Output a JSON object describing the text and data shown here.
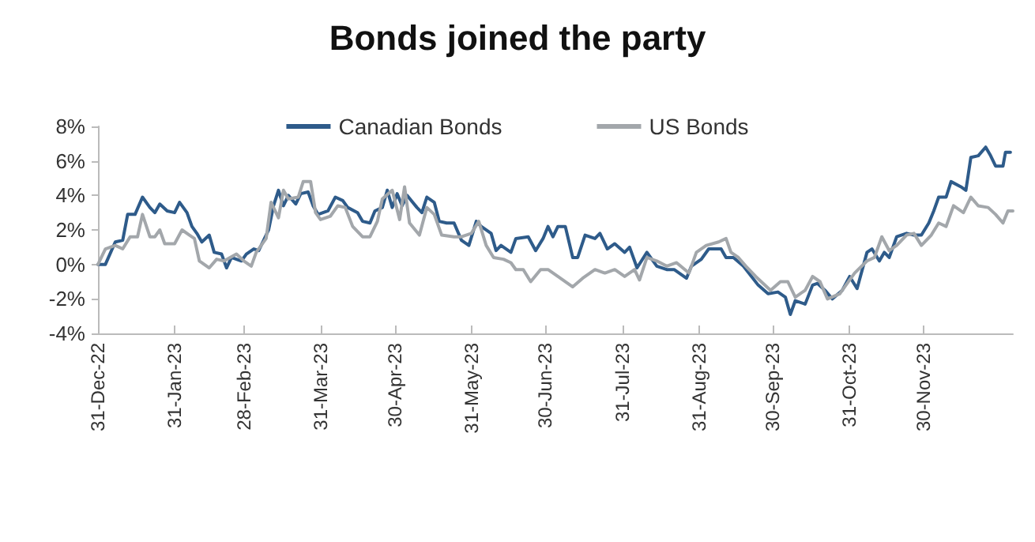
{
  "chart_data": {
    "type": "line",
    "title": "Bonds joined the party",
    "xlim": [
      "2022-12-31",
      "2024-01-05"
    ],
    "xticks": [
      {
        "value": "2022-12-31",
        "label": "31-Dec-22"
      },
      {
        "value": "2023-01-31",
        "label": "31-Jan-23"
      },
      {
        "value": "2023-02-28",
        "label": "28-Feb-23"
      },
      {
        "value": "2023-03-31",
        "label": "31-Mar-23"
      },
      {
        "value": "2023-04-30",
        "label": "30-Apr-23"
      },
      {
        "value": "2023-05-31",
        "label": "31-May-23"
      },
      {
        "value": "2023-06-30",
        "label": "30-Jun-23"
      },
      {
        "value": "2023-07-31",
        "label": "31-Jul-23"
      },
      {
        "value": "2023-08-31",
        "label": "31-Aug-23"
      },
      {
        "value": "2023-09-30",
        "label": "30-Sep-23"
      },
      {
        "value": "2023-10-31",
        "label": "31-Oct-23"
      },
      {
        "value": "2023-11-30",
        "label": "30-Nov-23"
      }
    ],
    "ylim": [
      -4,
      8
    ],
    "yticks": [
      {
        "value": -4,
        "label": "-4%"
      },
      {
        "value": -2,
        "label": "-2%"
      },
      {
        "value": 0,
        "label": "0%"
      },
      {
        "value": 2,
        "label": "2%"
      },
      {
        "value": 4,
        "label": "4%"
      },
      {
        "value": 6,
        "label": "6%"
      },
      {
        "value": 8,
        "label": "8%"
      }
    ],
    "grid": false,
    "legend": "top",
    "marker": "none",
    "line_style": "solid",
    "series": [
      {
        "name": "Canadian Bonds",
        "color": "#2e5b8a",
        "x": [
          "2022-12-31",
          "2023-01-03",
          "2023-01-07",
          "2023-01-10",
          "2023-01-12",
          "2023-01-15",
          "2023-01-18",
          "2023-01-21",
          "2023-01-23",
          "2023-01-25",
          "2023-01-28",
          "2023-01-31",
          "2023-02-02",
          "2023-02-05",
          "2023-02-07",
          "2023-02-09",
          "2023-02-11",
          "2023-02-14",
          "2023-02-16",
          "2023-02-19",
          "2023-02-21",
          "2023-02-23",
          "2023-02-27",
          "2023-03-01",
          "2023-03-04",
          "2023-03-06",
          "2023-03-10",
          "2023-03-12",
          "2023-03-14",
          "2023-03-16",
          "2023-03-18",
          "2023-03-21",
          "2023-03-23",
          "2023-03-26",
          "2023-03-28",
          "2023-03-30",
          "2023-04-03",
          "2023-04-06",
          "2023-04-09",
          "2023-04-11",
          "2023-04-15",
          "2023-04-17",
          "2023-04-20",
          "2023-04-22",
          "2023-04-25",
          "2023-04-27",
          "2023-04-29",
          "2023-05-01",
          "2023-05-03",
          "2023-05-05",
          "2023-05-09",
          "2023-05-11",
          "2023-05-13",
          "2023-05-16",
          "2023-05-18",
          "2023-05-21",
          "2023-05-24",
          "2023-05-27",
          "2023-05-30",
          "2023-06-02",
          "2023-06-04",
          "2023-06-08",
          "2023-06-10",
          "2023-06-12",
          "2023-06-16",
          "2023-06-18",
          "2023-06-23",
          "2023-06-26",
          "2023-06-29",
          "2023-07-01",
          "2023-07-03",
          "2023-07-05",
          "2023-07-08",
          "2023-07-11",
          "2023-07-13",
          "2023-07-16",
          "2023-07-20",
          "2023-07-22",
          "2023-07-25",
          "2023-07-28",
          "2023-08-01",
          "2023-08-03",
          "2023-08-06",
          "2023-08-10",
          "2023-08-14",
          "2023-08-18",
          "2023-08-21",
          "2023-08-26",
          "2023-08-28",
          "2023-09-01",
          "2023-09-04",
          "2023-09-09",
          "2023-09-11",
          "2023-09-14",
          "2023-09-18",
          "2023-09-24",
          "2023-09-28",
          "2023-10-02",
          "2023-10-05",
          "2023-10-07",
          "2023-10-09",
          "2023-10-13",
          "2023-10-16",
          "2023-10-18",
          "2023-10-21",
          "2023-10-24",
          "2023-10-28",
          "2023-10-31",
          "2023-11-03",
          "2023-11-07",
          "2023-11-09",
          "2023-11-12",
          "2023-11-14",
          "2023-11-16",
          "2023-11-19",
          "2023-11-23",
          "2023-11-26",
          "2023-11-29",
          "2023-12-02",
          "2023-12-04",
          "2023-12-06",
          "2023-12-09",
          "2023-12-11",
          "2023-12-15",
          "2023-12-17",
          "2023-12-19",
          "2023-12-22",
          "2023-12-25",
          "2023-12-27",
          "2023-12-29",
          "2024-01-01",
          "2024-01-02",
          "2024-01-04"
        ],
        "values": [
          0,
          0,
          1.3,
          1.4,
          2.9,
          2.9,
          3.9,
          3.3,
          3.0,
          3.5,
          3.1,
          3.0,
          3.6,
          3.0,
          2.2,
          1.8,
          1.3,
          1.7,
          0.7,
          0.6,
          -0.2,
          0.4,
          0.2,
          0.6,
          0.9,
          0.8,
          2.0,
          3.4,
          4.3,
          3.4,
          4.0,
          3.5,
          4.1,
          4.2,
          3.4,
          2.9,
          3.1,
          3.9,
          3.7,
          3.3,
          3.0,
          2.5,
          2.4,
          3.1,
          3.3,
          4.3,
          3.3,
          4.1,
          3.4,
          4.0,
          3.3,
          3.0,
          3.9,
          3.6,
          2.5,
          2.4,
          2.4,
          1.4,
          1.1,
          2.5,
          2.2,
          1.8,
          0.8,
          1.1,
          0.7,
          1.5,
          1.6,
          0.8,
          1.5,
          2.2,
          1.6,
          2.2,
          2.2,
          0.4,
          0.4,
          1.7,
          1.5,
          1.8,
          0.9,
          1.2,
          0.7,
          1.0,
          -0.2,
          0.7,
          -0.1,
          -0.3,
          -0.3,
          -0.8,
          -0.1,
          0.3,
          0.9,
          0.9,
          0.4,
          0.4,
          -0.1,
          -1.2,
          -1.7,
          -1.6,
          -1.9,
          -2.9,
          -2.1,
          -2.3,
          -1.2,
          -1.1,
          -1.5,
          -2.0,
          -1.5,
          -0.7,
          -1.4,
          0.7,
          0.9,
          0.2,
          0.7,
          0.4,
          1.6,
          1.8,
          1.7,
          1.7,
          2.4,
          3.1,
          3.9,
          3.9,
          4.8,
          4.5,
          4.3,
          6.2,
          6.3,
          6.8,
          6.3,
          5.7,
          5.7,
          6.5,
          6.5
        ]
      },
      {
        "name": "US Bonds",
        "color": "#a3a7ab",
        "x": [
          "2022-12-31",
          "2023-01-03",
          "2023-01-07",
          "2023-01-10",
          "2023-01-13",
          "2023-01-16",
          "2023-01-18",
          "2023-01-21",
          "2023-01-23",
          "2023-01-25",
          "2023-01-27",
          "2023-01-31",
          "2023-02-03",
          "2023-02-06",
          "2023-02-08",
          "2023-02-10",
          "2023-02-14",
          "2023-02-17",
          "2023-02-20",
          "2023-02-25",
          "2023-02-28",
          "2023-03-03",
          "2023-03-05",
          "2023-03-09",
          "2023-03-11",
          "2023-03-14",
          "2023-03-16",
          "2023-03-18",
          "2023-03-22",
          "2023-03-24",
          "2023-03-27",
          "2023-03-29",
          "2023-03-31",
          "2023-04-04",
          "2023-04-07",
          "2023-04-10",
          "2023-04-13",
          "2023-04-17",
          "2023-04-20",
          "2023-04-23",
          "2023-04-25",
          "2023-04-29",
          "2023-05-02",
          "2023-05-04",
          "2023-05-06",
          "2023-05-10",
          "2023-05-13",
          "2023-05-16",
          "2023-05-19",
          "2023-05-24",
          "2023-05-27",
          "2023-05-31",
          "2023-06-03",
          "2023-06-06",
          "2023-06-09",
          "2023-06-13",
          "2023-06-16",
          "2023-06-18",
          "2023-06-21",
          "2023-06-24",
          "2023-06-28",
          "2023-07-01",
          "2023-07-05",
          "2023-07-11",
          "2023-07-15",
          "2023-07-20",
          "2023-07-24",
          "2023-07-28",
          "2023-08-01",
          "2023-08-05",
          "2023-08-07",
          "2023-08-10",
          "2023-08-14",
          "2023-08-18",
          "2023-08-22",
          "2023-08-27",
          "2023-08-30",
          "2023-09-03",
          "2023-09-08",
          "2023-09-11",
          "2023-09-13",
          "2023-09-16",
          "2023-09-19",
          "2023-09-23",
          "2023-09-26",
          "2023-09-29",
          "2023-10-03",
          "2023-10-06",
          "2023-10-09",
          "2023-10-13",
          "2023-10-16",
          "2023-10-19",
          "2023-10-22",
          "2023-10-27",
          "2023-10-30",
          "2023-11-02",
          "2023-11-07",
          "2023-11-10",
          "2023-11-13",
          "2023-11-16",
          "2023-11-19",
          "2023-11-23",
          "2023-11-26",
          "2023-11-29",
          "2023-12-03",
          "2023-12-06",
          "2023-12-09",
          "2023-12-12",
          "2023-12-16",
          "2023-12-19",
          "2023-12-22",
          "2023-12-26",
          "2023-12-29",
          "2024-01-01",
          "2024-01-03",
          "2024-01-05"
        ],
        "values": [
          0,
          0.9,
          1.1,
          0.9,
          1.6,
          1.6,
          2.9,
          1.6,
          1.6,
          2.0,
          1.2,
          1.2,
          2.0,
          1.7,
          1.5,
          0.2,
          -0.2,
          0.3,
          0.2,
          0.6,
          0.2,
          -0.1,
          0.7,
          1.5,
          3.6,
          2.7,
          4.3,
          3.8,
          3.9,
          4.8,
          4.8,
          3.0,
          2.6,
          2.8,
          3.4,
          3.3,
          2.2,
          1.6,
          1.6,
          2.5,
          3.8,
          4.3,
          2.6,
          4.5,
          2.4,
          1.7,
          3.3,
          2.9,
          1.7,
          1.6,
          1.6,
          1.8,
          2.5,
          1.1,
          0.4,
          0.3,
          0.1,
          -0.3,
          -0.3,
          -1.0,
          -0.3,
          -0.3,
          -0.7,
          -1.3,
          -0.8,
          -0.3,
          -0.5,
          -0.3,
          -0.7,
          -0.3,
          -0.9,
          0.4,
          0.2,
          -0.1,
          0.1,
          -0.5,
          0.7,
          1.1,
          1.3,
          1.5,
          0.7,
          0.4,
          -0.1,
          -0.7,
          -1.1,
          -1.5,
          -1.0,
          -1.0,
          -1.9,
          -1.5,
          -0.7,
          -1.0,
          -2.0,
          -1.7,
          -1.1,
          -0.5,
          0.2,
          0.4,
          1.6,
          0.8,
          1.1,
          1.7,
          1.8,
          1.1,
          1.7,
          2.4,
          2.2,
          3.4,
          3.0,
          3.9,
          3.4,
          3.3,
          2.9,
          2.4,
          3.1,
          3.1
        ]
      }
    ]
  }
}
